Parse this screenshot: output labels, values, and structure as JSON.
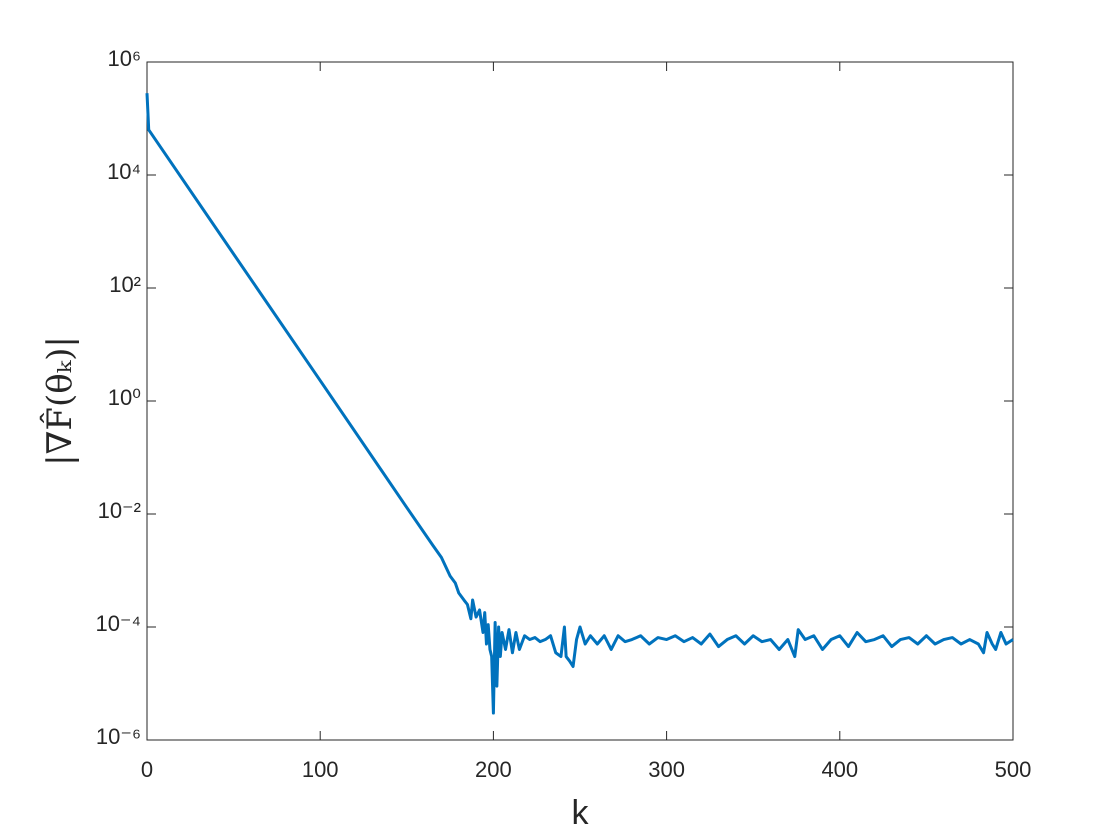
{
  "chart_data": {
    "type": "line",
    "x_label": "k",
    "y_label": "|∇F̂(θₖ)|",
    "y_scale": "log",
    "xlim": [
      0,
      500
    ],
    "xticks": [
      0,
      100,
      200,
      300,
      400,
      500
    ],
    "ylim": [
      1e-06,
      1000000.0
    ],
    "yticks": [
      {
        "value": 1e-06,
        "label": "10⁻⁶"
      },
      {
        "value": 0.0001,
        "label": "10⁻⁴"
      },
      {
        "value": 0.01,
        "label": "10⁻²"
      },
      {
        "value": 1,
        "label": "10⁰"
      },
      {
        "value": 100,
        "label": "10²"
      },
      {
        "value": 10000,
        "label": "10⁴"
      },
      {
        "value": 1000000,
        "label": "10⁶"
      }
    ],
    "grid": false,
    "x": [
      0,
      1,
      50,
      100,
      150,
      165,
      170,
      175,
      178,
      180,
      183,
      185,
      187,
      188,
      190,
      192,
      194,
      195,
      196,
      197,
      198,
      199,
      200,
      201,
      202,
      203,
      204,
      205,
      207,
      209,
      211,
      213,
      215,
      218,
      221,
      224,
      227,
      230,
      233,
      236,
      239,
      241,
      242,
      244,
      246,
      248,
      250,
      253,
      256,
      260,
      264,
      268,
      272,
      276,
      280,
      285,
      290,
      295,
      300,
      305,
      310,
      315,
      320,
      325,
      330,
      335,
      340,
      345,
      350,
      355,
      360,
      365,
      370,
      374,
      376,
      380,
      385,
      390,
      395,
      400,
      405,
      410,
      415,
      420,
      425,
      430,
      435,
      440,
      445,
      450,
      455,
      460,
      465,
      470,
      475,
      480,
      483,
      485,
      488,
      490,
      493,
      496,
      500
    ],
    "series": [
      {
        "color": "#0072bd",
        "values": [
          280000.0,
          63000.0,
          400,
          2.3,
          0.013,
          0.0028,
          0.0017,
          0.0008,
          0.0006,
          0.0004,
          0.0003,
          0.00025,
          0.00014,
          0.0003,
          0.00015,
          0.0002,
          8e-05,
          0.00018,
          5e-05,
          0.00011,
          4e-05,
          3e-05,
          3e-06,
          0.00012,
          9e-06,
          0.0001,
          3e-05,
          8e-05,
          4e-05,
          9e-05,
          3.5e-05,
          8e-05,
          4e-05,
          7e-05,
          6e-05,
          6.5e-05,
          5.5e-05,
          6e-05,
          7e-05,
          3.5e-05,
          3e-05,
          0.0001,
          3e-05,
          2.5e-05,
          2e-05,
          6e-05,
          0.0001,
          5e-05,
          7e-05,
          5e-05,
          7e-05,
          4e-05,
          7e-05,
          5.5e-05,
          6e-05,
          7e-05,
          5e-05,
          6.5e-05,
          6e-05,
          7e-05,
          5.5e-05,
          6.5e-05,
          5e-05,
          7.5e-05,
          4.5e-05,
          6e-05,
          7e-05,
          5e-05,
          7e-05,
          5.5e-05,
          6e-05,
          4e-05,
          6e-05,
          3e-05,
          9e-05,
          6e-05,
          7e-05,
          4e-05,
          6e-05,
          7e-05,
          4.5e-05,
          8e-05,
          5.5e-05,
          6e-05,
          7e-05,
          4.5e-05,
          6e-05,
          6.5e-05,
          5e-05,
          7e-05,
          5e-05,
          6e-05,
          6.5e-05,
          5e-05,
          6e-05,
          5e-05,
          3.5e-05,
          8e-05,
          5e-05,
          4e-05,
          8e-05,
          5e-05,
          6e-05
        ]
      }
    ]
  }
}
